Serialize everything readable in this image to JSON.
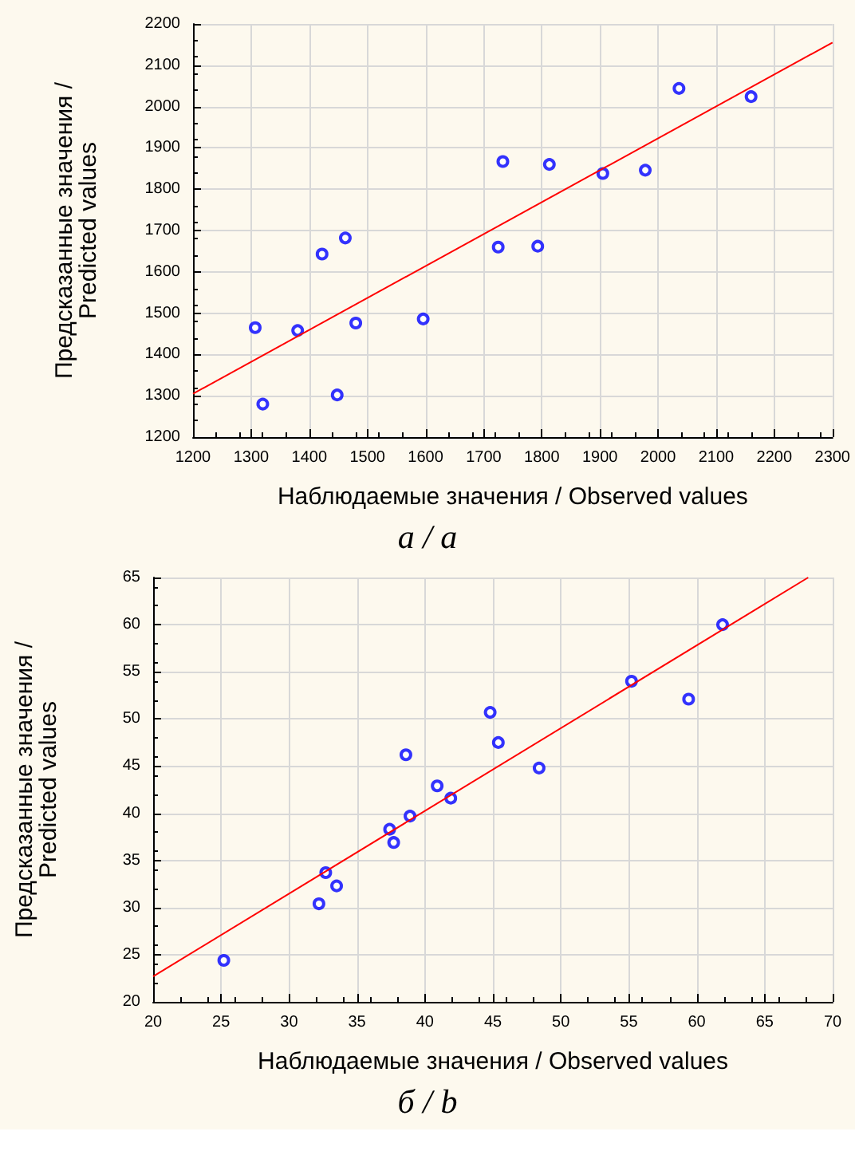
{
  "chart_data": [
    {
      "type": "scatter",
      "title": "a / a",
      "xlabel": "Наблюдаемые значения / Observed values",
      "ylabel": "Предсказанные значения /\nPredicted values",
      "xlim": [
        1200,
        2300
      ],
      "ylim": [
        1200,
        2200
      ],
      "xticks": [
        1200,
        1300,
        1400,
        1500,
        1600,
        1700,
        1800,
        1900,
        2000,
        2100,
        2200,
        2300
      ],
      "yticks": [
        1200,
        1300,
        1400,
        1500,
        1600,
        1700,
        1800,
        1900,
        2000,
        2100,
        2200
      ],
      "grid": true,
      "marker": "circle",
      "series": [
        {
          "color": "#0000ff",
          "x": [
            1307,
            1320,
            1380,
            1422,
            1448,
            1462,
            1480,
            1596,
            1725,
            1733,
            1793,
            1813,
            1905,
            1978,
            2036,
            2160
          ],
          "values": [
            1465,
            1280,
            1458,
            1643,
            1302,
            1682,
            1476,
            1486,
            1660,
            1867,
            1662,
            1860,
            1838,
            1846,
            2044,
            2024
          ]
        },
        {
          "type": "line",
          "marker": "none",
          "color": "#ff0000",
          "x": [
            1200,
            2300
          ],
          "values": [
            1305,
            2155
          ]
        }
      ]
    },
    {
      "type": "scatter",
      "title": "б / b",
      "xlabel": "Наблюдаемые значения / Observed values",
      "ylabel": "Предсказанные значения /\nPredicted values",
      "xlim": [
        20,
        70
      ],
      "ylim": [
        20,
        65
      ],
      "xticks": [
        20,
        25,
        30,
        35,
        40,
        45,
        50,
        55,
        60,
        65,
        70
      ],
      "yticks": [
        20,
        25,
        30,
        35,
        40,
        45,
        50,
        55,
        60,
        65
      ],
      "grid": true,
      "marker": "circle",
      "series": [
        {
          "color": "#0000ff",
          "x": [
            25.2,
            32.2,
            32.7,
            33.5,
            37.4,
            37.7,
            38.6,
            38.9,
            40.9,
            41.9,
            44.8,
            45.4,
            48.4,
            55.2,
            59.4,
            61.9
          ],
          "values": [
            24.4,
            30.4,
            33.7,
            32.3,
            38.3,
            36.9,
            46.2,
            39.7,
            42.9,
            41.6,
            50.7,
            47.5,
            44.8,
            54.0,
            52.1,
            60.0
          ]
        },
        {
          "type": "line",
          "marker": "none",
          "color": "#ff0000",
          "x": [
            20,
            68.2
          ],
          "values": [
            22.7,
            65
          ]
        }
      ]
    }
  ]
}
